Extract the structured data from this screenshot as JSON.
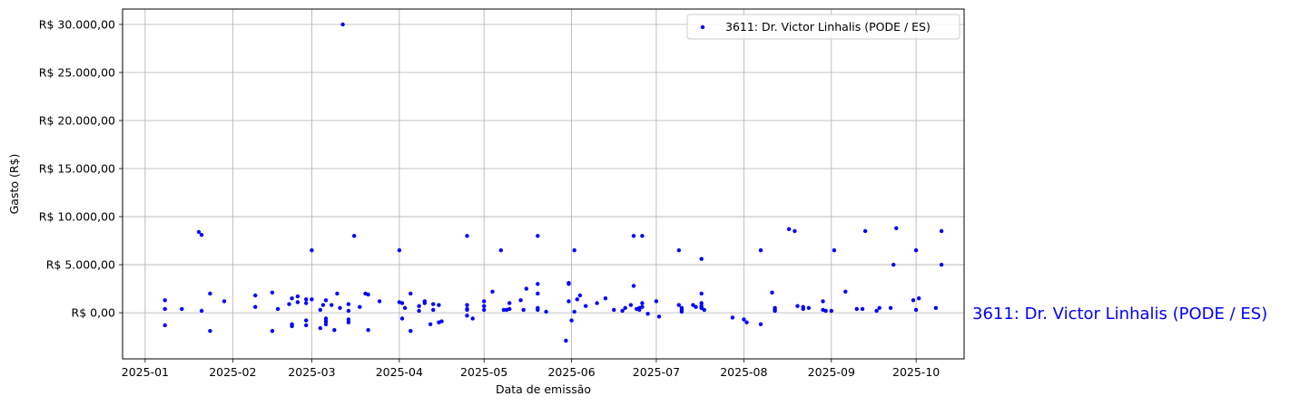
{
  "chart_data": {
    "type": "scatter",
    "xlabel": "Data de emissão",
    "ylabel": "Gasto (R$)",
    "x_tick_labels": [
      "2025-01",
      "2025-02",
      "2025-03",
      "2025-04",
      "2025-05",
      "2025-06",
      "2025-07",
      "2025-08",
      "2025-09",
      "2025-10"
    ],
    "y_tick_labels": [
      "R$ 0,00",
      "R$ 5.000,00",
      "R$ 10.000,00",
      "R$ 15.000,00",
      "R$ 20.000,00",
      "R$ 25.000,00",
      "R$ 30.000,00"
    ],
    "xlim": [
      "2024-12-24",
      "2025-10-18"
    ],
    "ylim": [
      -4800,
      31600
    ],
    "grid": true,
    "legend": "top-right",
    "side_label": "3611: Dr. Victor Linhalis (PODE / ES)",
    "series": [
      {
        "name": "3611: Dr. Victor Linhalis (PODE / ES)",
        "color": "#0000ff",
        "x": [
          "2025-01-08",
          "2025-01-08",
          "2025-01-08",
          "2025-01-14",
          "2025-01-20",
          "2025-01-21",
          "2025-01-21",
          "2025-01-24",
          "2025-01-24",
          "2025-01-29",
          "2025-02-09",
          "2025-02-09",
          "2025-02-15",
          "2025-02-15",
          "2025-02-17",
          "2025-02-21",
          "2025-02-22",
          "2025-02-22",
          "2025-02-22",
          "2025-02-24",
          "2025-02-24",
          "2025-02-27",
          "2025-02-27",
          "2025-02-27",
          "2025-02-27",
          "2025-03-01",
          "2025-03-01",
          "2025-03-04",
          "2025-03-04",
          "2025-03-05",
          "2025-03-06",
          "2025-03-06",
          "2025-03-06",
          "2025-03-06",
          "2025-03-08",
          "2025-03-09",
          "2025-03-10",
          "2025-03-11",
          "2025-03-12",
          "2025-03-14",
          "2025-03-14",
          "2025-03-14",
          "2025-03-14",
          "2025-03-16",
          "2025-03-18",
          "2025-03-20",
          "2025-03-21",
          "2025-03-21",
          "2025-03-25",
          "2025-04-01",
          "2025-04-01",
          "2025-04-02",
          "2025-04-02",
          "2025-04-03",
          "2025-04-05",
          "2025-04-05",
          "2025-04-08",
          "2025-04-08",
          "2025-04-10",
          "2025-04-10",
          "2025-04-12",
          "2025-04-13",
          "2025-04-13",
          "2025-04-15",
          "2025-04-15",
          "2025-04-16",
          "2025-04-25",
          "2025-04-25",
          "2025-04-25",
          "2025-04-25",
          "2025-04-25",
          "2025-04-27",
          "2025-05-01",
          "2025-05-01",
          "2025-05-01",
          "2025-05-04",
          "2025-05-07",
          "2025-05-08",
          "2025-05-09",
          "2025-05-10",
          "2025-05-10",
          "2025-05-14",
          "2025-05-15",
          "2025-05-16",
          "2025-05-20",
          "2025-05-20",
          "2025-05-20",
          "2025-05-20",
          "2025-05-20",
          "2025-05-23",
          "2025-05-30",
          "2025-05-31",
          "2025-05-31",
          "2025-05-31",
          "2025-06-01",
          "2025-06-02",
          "2025-06-02",
          "2025-06-03",
          "2025-06-04",
          "2025-06-06",
          "2025-06-10",
          "2025-06-13",
          "2025-06-16",
          "2025-06-19",
          "2025-06-20",
          "2025-06-22",
          "2025-06-23",
          "2025-06-23",
          "2025-06-24",
          "2025-06-25",
          "2025-06-25",
          "2025-06-26",
          "2025-06-26",
          "2025-06-26",
          "2025-06-28",
          "2025-07-02",
          "2025-07-01",
          "2025-07-09",
          "2025-07-09",
          "2025-07-10",
          "2025-07-10",
          "2025-07-10",
          "2025-07-14",
          "2025-07-15",
          "2025-07-17",
          "2025-07-17",
          "2025-07-17",
          "2025-07-17",
          "2025-07-17",
          "2025-07-17",
          "2025-07-18",
          "2025-07-28",
          "2025-08-01",
          "2025-08-02",
          "2025-08-07",
          "2025-08-07",
          "2025-08-11",
          "2025-08-12",
          "2025-08-12",
          "2025-08-12",
          "2025-08-17",
          "2025-08-19",
          "2025-08-20",
          "2025-08-22",
          "2025-08-22",
          "2025-08-24",
          "2025-08-29",
          "2025-08-29",
          "2025-08-30",
          "2025-09-01",
          "2025-09-02",
          "2025-09-06",
          "2025-09-10",
          "2025-09-12",
          "2025-09-13",
          "2025-09-17",
          "2025-09-18",
          "2025-09-22",
          "2025-09-23",
          "2025-09-24",
          "2025-09-30",
          "2025-10-01",
          "2025-10-01",
          "2025-10-02",
          "2025-10-08",
          "2025-10-10",
          "2025-10-10"
        ],
        "y": [
          1300,
          400,
          -1300,
          400,
          8400,
          8100,
          200,
          2000,
          -1900,
          1200,
          1800,
          600,
          2100,
          -1900,
          400,
          900,
          -1200,
          -1400,
          1500,
          1700,
          1100,
          1400,
          1000,
          -800,
          -1300,
          1400,
          6500,
          300,
          -1600,
          800,
          -600,
          -900,
          -1200,
          1300,
          800,
          -1800,
          2000,
          500,
          30000,
          -700,
          900,
          -1000,
          200,
          8000,
          600,
          2000,
          1900,
          -1800,
          1200,
          6500,
          1100,
          -600,
          1000,
          500,
          2000,
          -1900,
          700,
          200,
          1200,
          1000,
          -1200,
          900,
          300,
          800,
          -1000,
          -900,
          800,
          8000,
          400,
          300,
          -300,
          -600,
          700,
          300,
          1200,
          2200,
          6500,
          300,
          300,
          400,
          1000,
          1300,
          300,
          2500,
          500,
          300,
          8000,
          3000,
          2000,
          100,
          -2900,
          3100,
          1200,
          3000,
          -800,
          100,
          6500,
          1400,
          1800,
          700,
          1000,
          1500,
          300,
          200,
          500,
          800,
          2800,
          8000,
          400,
          300,
          500,
          1000,
          8000,
          600,
          -100,
          -400,
          1200,
          6500,
          800,
          500,
          300,
          100,
          800,
          600,
          5600,
          500,
          2000,
          1000,
          700,
          500,
          300,
          -500,
          -700,
          -1000,
          -1200,
          6500,
          2100,
          300,
          200,
          500,
          8700,
          8500,
          700,
          600,
          400,
          500,
          300,
          1200,
          200,
          200,
          6500,
          2200,
          400,
          400,
          8500,
          200,
          500,
          500,
          5000,
          8800,
          1300,
          6500,
          300,
          1500,
          500,
          8500,
          5000
        ]
      }
    ]
  }
}
